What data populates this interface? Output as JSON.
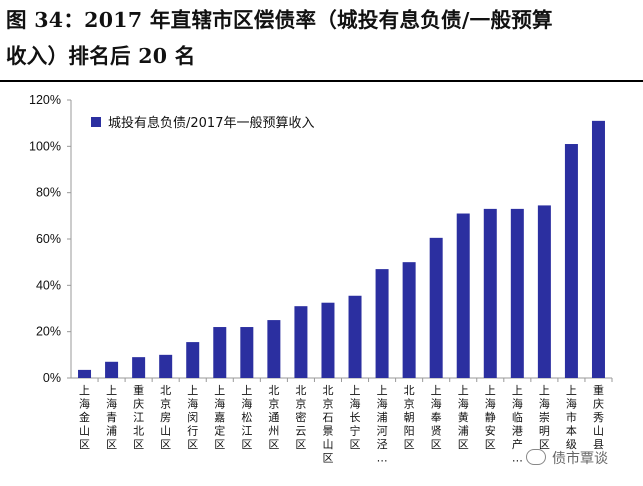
{
  "title": {
    "line1": "图 34：2017 年直辖市区偿债率（城投有息负债/一般预算",
    "line2": "收入）排名后 20 名"
  },
  "watermark": {
    "text": "债市覃谈",
    "icon": "wechat-bubble-icon"
  },
  "colors": {
    "bar": "#2B2FA0",
    "axis": "#999999"
  },
  "chart_data": {
    "type": "bar",
    "title": "",
    "xlabel": "",
    "ylabel": "",
    "ylim": [
      0,
      120
    ],
    "y_ticks": [
      "0%",
      "20%",
      "40%",
      "60%",
      "80%",
      "100%",
      "120%"
    ],
    "grid": false,
    "legend": {
      "position": "top-left",
      "entries": [
        "城投有息负债/2017年一般预算收入"
      ]
    },
    "categories": [
      "上海金山区",
      "上海青浦区",
      "重庆江北区",
      "北京房山区",
      "上海闵行区",
      "上海嘉定区",
      "上海松江区",
      "北京通州区",
      "北京密云区",
      "北京石景山区",
      "上海长宁区",
      "上海浦东新区",
      "北京朝阳区",
      "上海奉贤区",
      "上海黄浦区",
      "上海静安区",
      "上海临港产业区",
      "上海崇明区",
      "上海市本级",
      "重庆秀山县"
    ],
    "category_display": [
      "上海金山区",
      "上海青浦区",
      "重庆江北区",
      "北京房山区",
      "上海闵行区",
      "上海嘉定区",
      "上海松江区",
      "北京通州区",
      "北京密云区",
      "北京石景山区",
      "上海长宁区",
      "上海浦河泾…",
      "北京朝阳区",
      "上海奉贤区",
      "上海黄浦区",
      "上海静安区",
      "上海临港产…",
      "上海崇明区",
      "上海市本级",
      "重庆秀山县"
    ],
    "series": [
      {
        "name": "城投有息负债/2017年一般预算收入",
        "values": [
          3.5,
          7.0,
          9.0,
          10.0,
          15.5,
          22.0,
          22.0,
          25.0,
          31.0,
          32.5,
          35.5,
          47.0,
          50.0,
          60.5,
          71.0,
          73.0,
          73.0,
          74.5,
          101.0,
          111.0
        ]
      }
    ]
  }
}
